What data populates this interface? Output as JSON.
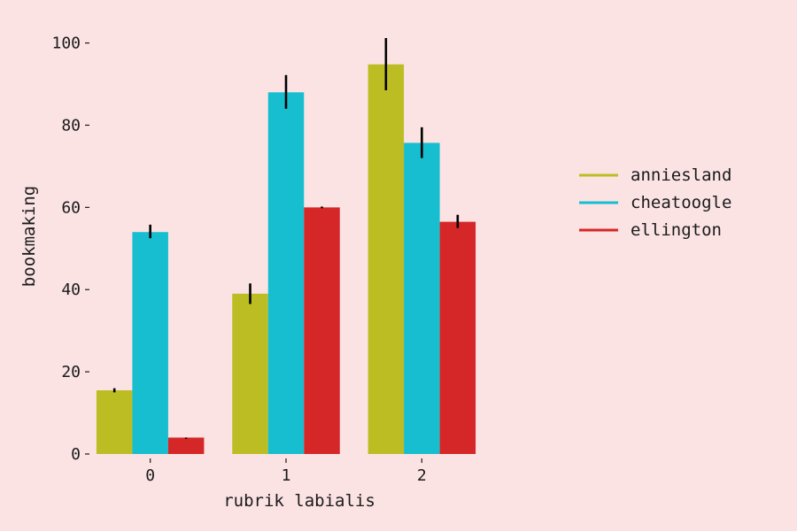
{
  "chart_data": {
    "type": "bar",
    "title": "",
    "xlabel": "rubrik labialis",
    "ylabel": "bookmaking",
    "categories": [
      "0",
      "1",
      "2"
    ],
    "ylim": [
      0,
      104
    ],
    "yticks": [
      0,
      20,
      40,
      60,
      80,
      100
    ],
    "grid": false,
    "legend_position": "right",
    "background": "#fbe3e4",
    "series": [
      {
        "name": "anniesland",
        "color": "#bcbd22",
        "values": [
          15.5,
          39,
          94.8
        ],
        "error_low": [
          15.0,
          36.5,
          88.5
        ],
        "error_high": [
          16.0,
          41.5,
          101.2
        ]
      },
      {
        "name": "cheatoogle",
        "color": "#17becf",
        "values": [
          54,
          88,
          75.7
        ],
        "error_low": [
          52.5,
          84.0,
          72.0
        ],
        "error_high": [
          55.8,
          92.2,
          79.5
        ]
      },
      {
        "name": "ellington",
        "color": "#d62728",
        "values": [
          4,
          60,
          56.5
        ],
        "error_low": [
          4,
          59.8,
          55.0
        ],
        "error_high": [
          4,
          60.2,
          58.2
        ]
      }
    ]
  }
}
